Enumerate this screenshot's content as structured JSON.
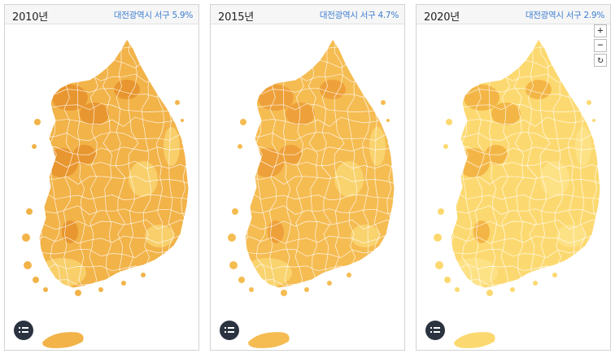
{
  "panels": [
    {
      "year_label": "2010년",
      "region_label": "대전광역시 서구 5.9%",
      "fill_main": "#f2b349",
      "fill_dark": "#e8962f",
      "fill_light": "#f8cf6a"
    },
    {
      "year_label": "2015년",
      "region_label": "대전광역시 서구 4.7%",
      "fill_main": "#f5bc52",
      "fill_dark": "#eea13a",
      "fill_light": "#f9d36e"
    },
    {
      "year_label": "2020년",
      "region_label": "대전광역시 서구 2.9%",
      "fill_main": "#fcd970",
      "fill_dark": "#f3b646",
      "fill_light": "#fde185"
    }
  ],
  "zoom_controls": {
    "zoom_in_label": "+",
    "zoom_out_label": "−",
    "reset_label": "↻"
  },
  "legend_icon": "legend-list-icon",
  "colors": {
    "region_text": "#3d7ed1",
    "legend_button": "#2b3340",
    "border_lines": "#ffffff"
  }
}
